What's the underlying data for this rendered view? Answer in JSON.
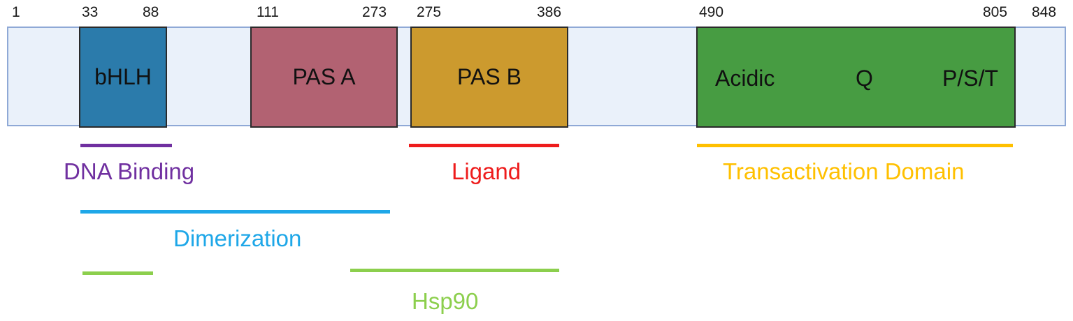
{
  "positions": [
    "1",
    "33",
    "88",
    "111",
    "273",
    "275",
    "386",
    "490",
    "805",
    "848"
  ],
  "domains": {
    "bhlh": {
      "label": "bHLH",
      "color": "#2b7bab"
    },
    "pas_a": {
      "label": "PAS A",
      "color": "#b26272"
    },
    "pas_b": {
      "label": "PAS B",
      "color": "#cc9a2e"
    },
    "tad": {
      "sublabels": [
        "Acidic",
        "Q",
        "P/S/T"
      ],
      "color": "#479c42"
    }
  },
  "regions": {
    "dna_binding": {
      "label": "DNA Binding",
      "color": "#7030a0"
    },
    "ligand": {
      "label": "Ligand",
      "color": "#ee1c1c"
    },
    "transactivation": {
      "label": "Transactivation Domain",
      "color": "#ffc000"
    },
    "dimerization": {
      "label": "Dimerization",
      "color": "#1ea7e8"
    },
    "hsp90": {
      "label": "Hsp90",
      "color": "#8ccf4d"
    }
  }
}
